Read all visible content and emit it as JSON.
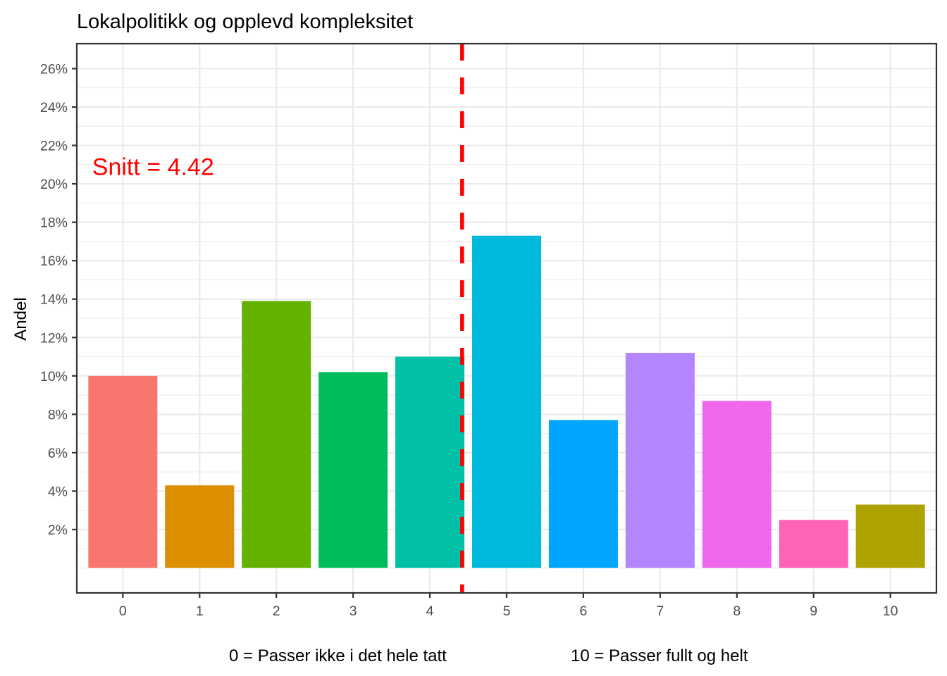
{
  "chart_data": {
    "type": "bar",
    "title": "Lokalpolitikk og opplevd kompleksitet",
    "xlabel": "0 = Passer ikke i det hele tatt           10 = Passer fullt og helt",
    "xlabel_parts": [
      "0 = Passer ikke i det hele tatt",
      "10 = Passer fullt og helt"
    ],
    "ylabel": "Andel",
    "categories": [
      "0",
      "1",
      "2",
      "3",
      "4",
      "5",
      "6",
      "7",
      "8",
      "9",
      "10"
    ],
    "values": [
      10.0,
      4.3,
      13.9,
      10.2,
      11.0,
      17.3,
      7.7,
      11.2,
      8.7,
      2.5,
      3.3
    ],
    "value_unit": "%",
    "colors": [
      "#F8766D",
      "#DB8E00",
      "#64B200",
      "#00BD5C",
      "#00C1A7",
      "#00BADE",
      "#00A6FF",
      "#B385FF",
      "#EF67EB",
      "#FF63B6",
      "#AEA200"
    ],
    "xlim": [
      -0.6,
      10.6
    ],
    "ylim": [
      -1.3,
      27.3
    ],
    "yticks": [
      2,
      4,
      6,
      8,
      10,
      12,
      14,
      16,
      18,
      20,
      22,
      24,
      26
    ],
    "ytick_labels": [
      "2%",
      "4%",
      "6%",
      "8%",
      "10%",
      "12%",
      "14%",
      "16%",
      "18%",
      "20%",
      "22%",
      "24%",
      "26%"
    ],
    "grid": true,
    "legend": "none",
    "reference_line": {
      "x": 4.42,
      "style": "dashed",
      "color": "#FF0000"
    },
    "annotation": {
      "text": "Snitt = 4.42",
      "x": -0.4,
      "y": 20.9,
      "color": "#FF0000"
    }
  }
}
